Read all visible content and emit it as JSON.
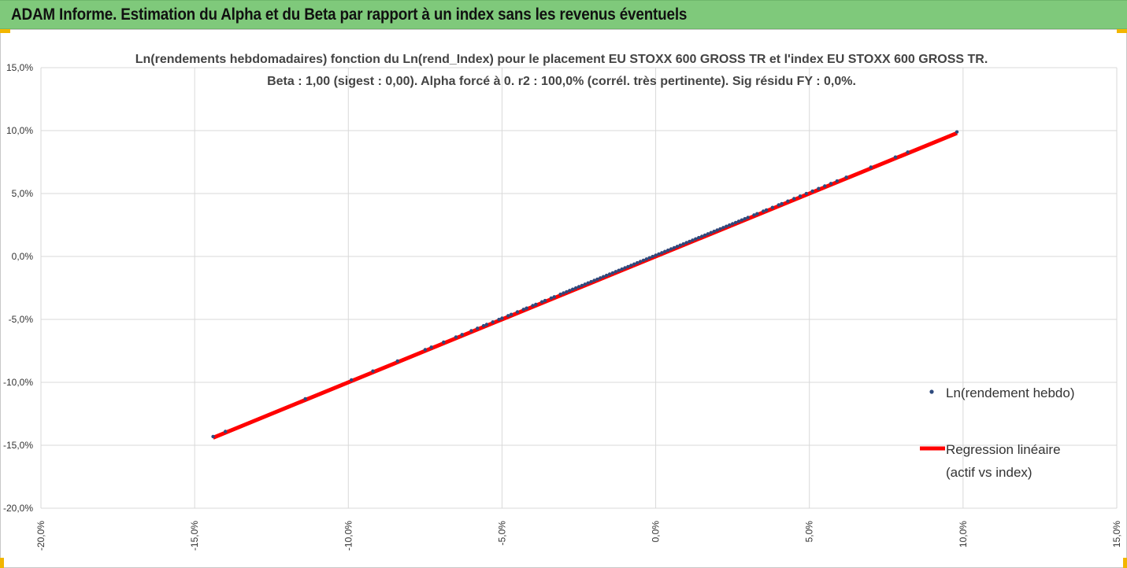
{
  "banner": {
    "title": "ADAM Informe. Estimation du Alpha et du Beta par rapport à un index sans les revenus éventuels",
    "color": "#7fc97b"
  },
  "chart_data": {
    "type": "scatter",
    "title_line1": "Ln(rendements hebdomadaires) fonction du Ln(rend_Index) pour le placement EU STOXX 600 GROSS TR et l'index EU STOXX 600 GROSS TR.",
    "title_line2": "Beta : 1,00 (sigest : 0,00). Alpha forcé à 0. r2 : 100,0% (corrél. très pertinente). Sig résidu FY : 0,0%.",
    "xlabel": "",
    "ylabel": "",
    "xlim": [
      -0.2,
      0.15
    ],
    "ylim": [
      -0.2,
      0.15
    ],
    "x_ticks": [
      -0.2,
      -0.15,
      -0.1,
      -0.05,
      0.0,
      0.05,
      0.1,
      0.15
    ],
    "x_tick_labels": [
      "-20,0%",
      "-15,0%",
      "-10,0%",
      "-5,0%",
      "0,0%",
      "5,0%",
      "10,0%",
      "15,0%"
    ],
    "y_ticks": [
      0.15,
      0.1,
      0.05,
      0.0,
      -0.05,
      -0.1,
      -0.15,
      -0.2
    ],
    "y_tick_labels": [
      "15,0%",
      "10,0%",
      "5,0%",
      "0,0%",
      "-5,0%",
      "-10,0%",
      "-15,0%",
      "-20,0%"
    ],
    "grid": true,
    "legend_position": "right",
    "series": [
      {
        "name": "Ln(rendement hebdo)",
        "kind": "points",
        "color": "#2e4a7e",
        "points": [
          [
            -0.144,
            -0.144
          ],
          [
            -0.14,
            -0.14
          ],
          [
            -0.114,
            -0.114
          ],
          [
            -0.099,
            -0.099
          ],
          [
            -0.092,
            -0.092
          ],
          [
            -0.084,
            -0.084
          ],
          [
            -0.075,
            -0.075
          ],
          [
            -0.073,
            -0.073
          ],
          [
            -0.069,
            -0.069
          ],
          [
            -0.065,
            -0.065
          ],
          [
            -0.063,
            -0.063
          ],
          [
            -0.06,
            -0.06
          ],
          [
            -0.058,
            -0.058
          ],
          [
            -0.056,
            -0.056
          ],
          [
            -0.055,
            -0.055
          ],
          [
            -0.053,
            -0.053
          ],
          [
            -0.051,
            -0.051
          ],
          [
            -0.05,
            -0.05
          ],
          [
            -0.048,
            -0.048
          ],
          [
            -0.047,
            -0.047
          ],
          [
            -0.045,
            -0.045
          ],
          [
            -0.043,
            -0.043
          ],
          [
            -0.042,
            -0.042
          ],
          [
            -0.04,
            -0.04
          ],
          [
            -0.039,
            -0.039
          ],
          [
            -0.037,
            -0.037
          ],
          [
            -0.036,
            -0.036
          ],
          [
            -0.034,
            -0.034
          ],
          [
            -0.033,
            -0.033
          ],
          [
            -0.031,
            -0.031
          ],
          [
            -0.03,
            -0.03
          ],
          [
            -0.029,
            -0.029
          ],
          [
            -0.028,
            -0.028
          ],
          [
            -0.027,
            -0.027
          ],
          [
            -0.026,
            -0.026
          ],
          [
            -0.025,
            -0.025
          ],
          [
            -0.024,
            -0.024
          ],
          [
            -0.023,
            -0.023
          ],
          [
            -0.022,
            -0.022
          ],
          [
            -0.021,
            -0.021
          ],
          [
            -0.02,
            -0.02
          ],
          [
            -0.019,
            -0.019
          ],
          [
            -0.018,
            -0.018
          ],
          [
            -0.017,
            -0.017
          ],
          [
            -0.016,
            -0.016
          ],
          [
            -0.015,
            -0.015
          ],
          [
            -0.014,
            -0.014
          ],
          [
            -0.013,
            -0.013
          ],
          [
            -0.012,
            -0.012
          ],
          [
            -0.011,
            -0.011
          ],
          [
            -0.01,
            -0.01
          ],
          [
            -0.009,
            -0.009
          ],
          [
            -0.008,
            -0.008
          ],
          [
            -0.007,
            -0.007
          ],
          [
            -0.006,
            -0.006
          ],
          [
            -0.005,
            -0.005
          ],
          [
            -0.004,
            -0.004
          ],
          [
            -0.003,
            -0.003
          ],
          [
            -0.002,
            -0.002
          ],
          [
            -0.001,
            -0.001
          ],
          [
            0.0,
            0.0
          ],
          [
            0.001,
            0.001
          ],
          [
            0.002,
            0.002
          ],
          [
            0.003,
            0.003
          ],
          [
            0.004,
            0.004
          ],
          [
            0.005,
            0.005
          ],
          [
            0.006,
            0.006
          ],
          [
            0.007,
            0.007
          ],
          [
            0.008,
            0.008
          ],
          [
            0.009,
            0.009
          ],
          [
            0.01,
            0.01
          ],
          [
            0.011,
            0.011
          ],
          [
            0.012,
            0.012
          ],
          [
            0.013,
            0.013
          ],
          [
            0.014,
            0.014
          ],
          [
            0.015,
            0.015
          ],
          [
            0.016,
            0.016
          ],
          [
            0.017,
            0.017
          ],
          [
            0.018,
            0.018
          ],
          [
            0.019,
            0.019
          ],
          [
            0.02,
            0.02
          ],
          [
            0.021,
            0.021
          ],
          [
            0.022,
            0.022
          ],
          [
            0.023,
            0.023
          ],
          [
            0.024,
            0.024
          ],
          [
            0.025,
            0.025
          ],
          [
            0.026,
            0.026
          ],
          [
            0.027,
            0.027
          ],
          [
            0.028,
            0.028
          ],
          [
            0.029,
            0.029
          ],
          [
            0.03,
            0.03
          ],
          [
            0.032,
            0.032
          ],
          [
            0.033,
            0.033
          ],
          [
            0.035,
            0.035
          ],
          [
            0.036,
            0.036
          ],
          [
            0.038,
            0.038
          ],
          [
            0.04,
            0.04
          ],
          [
            0.041,
            0.041
          ],
          [
            0.043,
            0.043
          ],
          [
            0.045,
            0.045
          ],
          [
            0.047,
            0.047
          ],
          [
            0.049,
            0.049
          ],
          [
            0.051,
            0.051
          ],
          [
            0.053,
            0.053
          ],
          [
            0.055,
            0.055
          ],
          [
            0.057,
            0.057
          ],
          [
            0.059,
            0.059
          ],
          [
            0.062,
            0.062
          ],
          [
            0.07,
            0.07
          ],
          [
            0.078,
            0.078
          ],
          [
            0.082,
            0.082
          ],
          [
            0.098,
            0.098
          ]
        ]
      },
      {
        "name": "Regression linéaire",
        "name_line2": "(actif vs index)",
        "kind": "line",
        "color": "#ff0000",
        "x_range": [
          -0.144,
          0.098
        ],
        "beta": 1.0,
        "alpha": 0.0
      }
    ]
  }
}
